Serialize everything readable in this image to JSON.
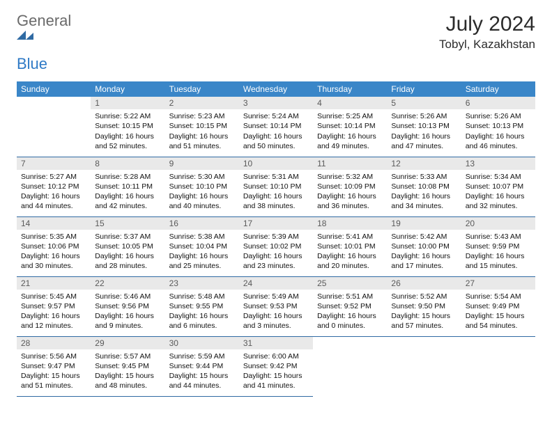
{
  "brand": {
    "text_general": "General",
    "text_blue": "Blue",
    "mark_color": "#2f6aa3"
  },
  "title": "July 2024",
  "location": "Tobyl, Kazakhstan",
  "colors": {
    "header_bg": "#3a86c8",
    "header_fg": "#ffffff",
    "daynum_bg": "#e9e9e9",
    "daynum_fg": "#5a5a5a",
    "rule": "#2f6aa3",
    "text": "#111111",
    "page_bg": "#ffffff"
  },
  "weekday_labels": [
    "Sunday",
    "Monday",
    "Tuesday",
    "Wednesday",
    "Thursday",
    "Friday",
    "Saturday"
  ],
  "grid": {
    "rows": 5,
    "cols": 7,
    "first_weekday_index": 1,
    "days_in_month": 31
  },
  "days": [
    {
      "n": 1,
      "sunrise": "5:22 AM",
      "sunset": "10:15 PM",
      "daylight": "16 hours and 52 minutes."
    },
    {
      "n": 2,
      "sunrise": "5:23 AM",
      "sunset": "10:15 PM",
      "daylight": "16 hours and 51 minutes."
    },
    {
      "n": 3,
      "sunrise": "5:24 AM",
      "sunset": "10:14 PM",
      "daylight": "16 hours and 50 minutes."
    },
    {
      "n": 4,
      "sunrise": "5:25 AM",
      "sunset": "10:14 PM",
      "daylight": "16 hours and 49 minutes."
    },
    {
      "n": 5,
      "sunrise": "5:26 AM",
      "sunset": "10:13 PM",
      "daylight": "16 hours and 47 minutes."
    },
    {
      "n": 6,
      "sunrise": "5:26 AM",
      "sunset": "10:13 PM",
      "daylight": "16 hours and 46 minutes."
    },
    {
      "n": 7,
      "sunrise": "5:27 AM",
      "sunset": "10:12 PM",
      "daylight": "16 hours and 44 minutes."
    },
    {
      "n": 8,
      "sunrise": "5:28 AM",
      "sunset": "10:11 PM",
      "daylight": "16 hours and 42 minutes."
    },
    {
      "n": 9,
      "sunrise": "5:30 AM",
      "sunset": "10:10 PM",
      "daylight": "16 hours and 40 minutes."
    },
    {
      "n": 10,
      "sunrise": "5:31 AM",
      "sunset": "10:10 PM",
      "daylight": "16 hours and 38 minutes."
    },
    {
      "n": 11,
      "sunrise": "5:32 AM",
      "sunset": "10:09 PM",
      "daylight": "16 hours and 36 minutes."
    },
    {
      "n": 12,
      "sunrise": "5:33 AM",
      "sunset": "10:08 PM",
      "daylight": "16 hours and 34 minutes."
    },
    {
      "n": 13,
      "sunrise": "5:34 AM",
      "sunset": "10:07 PM",
      "daylight": "16 hours and 32 minutes."
    },
    {
      "n": 14,
      "sunrise": "5:35 AM",
      "sunset": "10:06 PM",
      "daylight": "16 hours and 30 minutes."
    },
    {
      "n": 15,
      "sunrise": "5:37 AM",
      "sunset": "10:05 PM",
      "daylight": "16 hours and 28 minutes."
    },
    {
      "n": 16,
      "sunrise": "5:38 AM",
      "sunset": "10:04 PM",
      "daylight": "16 hours and 25 minutes."
    },
    {
      "n": 17,
      "sunrise": "5:39 AM",
      "sunset": "10:02 PM",
      "daylight": "16 hours and 23 minutes."
    },
    {
      "n": 18,
      "sunrise": "5:41 AM",
      "sunset": "10:01 PM",
      "daylight": "16 hours and 20 minutes."
    },
    {
      "n": 19,
      "sunrise": "5:42 AM",
      "sunset": "10:00 PM",
      "daylight": "16 hours and 17 minutes."
    },
    {
      "n": 20,
      "sunrise": "5:43 AM",
      "sunset": "9:59 PM",
      "daylight": "16 hours and 15 minutes."
    },
    {
      "n": 21,
      "sunrise": "5:45 AM",
      "sunset": "9:57 PM",
      "daylight": "16 hours and 12 minutes."
    },
    {
      "n": 22,
      "sunrise": "5:46 AM",
      "sunset": "9:56 PM",
      "daylight": "16 hours and 9 minutes."
    },
    {
      "n": 23,
      "sunrise": "5:48 AM",
      "sunset": "9:55 PM",
      "daylight": "16 hours and 6 minutes."
    },
    {
      "n": 24,
      "sunrise": "5:49 AM",
      "sunset": "9:53 PM",
      "daylight": "16 hours and 3 minutes."
    },
    {
      "n": 25,
      "sunrise": "5:51 AM",
      "sunset": "9:52 PM",
      "daylight": "16 hours and 0 minutes."
    },
    {
      "n": 26,
      "sunrise": "5:52 AM",
      "sunset": "9:50 PM",
      "daylight": "15 hours and 57 minutes."
    },
    {
      "n": 27,
      "sunrise": "5:54 AM",
      "sunset": "9:49 PM",
      "daylight": "15 hours and 54 minutes."
    },
    {
      "n": 28,
      "sunrise": "5:56 AM",
      "sunset": "9:47 PM",
      "daylight": "15 hours and 51 minutes."
    },
    {
      "n": 29,
      "sunrise": "5:57 AM",
      "sunset": "9:45 PM",
      "daylight": "15 hours and 48 minutes."
    },
    {
      "n": 30,
      "sunrise": "5:59 AM",
      "sunset": "9:44 PM",
      "daylight": "15 hours and 44 minutes."
    },
    {
      "n": 31,
      "sunrise": "6:00 AM",
      "sunset": "9:42 PM",
      "daylight": "15 hours and 41 minutes."
    }
  ],
  "labels": {
    "sunrise": "Sunrise:",
    "sunset": "Sunset:",
    "daylight": "Daylight:"
  }
}
